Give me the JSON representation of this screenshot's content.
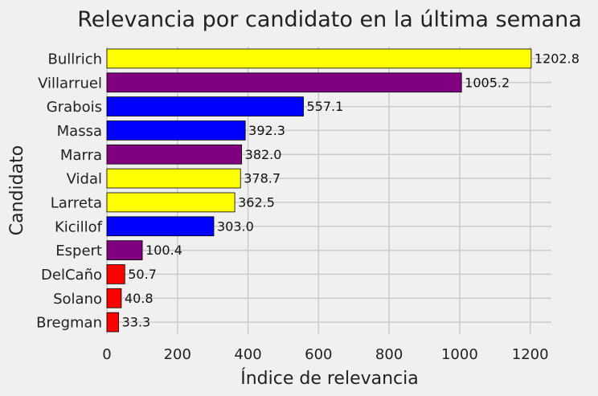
{
  "chart_data": {
    "type": "bar",
    "orientation": "horizontal",
    "title": "Relevancia por candidato en la última semana",
    "xlabel": "Índice de relevancia",
    "ylabel": "Candidato",
    "xlim": [
      0,
      1260
    ],
    "xticks": [
      0,
      200,
      400,
      600,
      800,
      1000,
      1200
    ],
    "grid": true,
    "categories": [
      "Bullrich",
      "Villarruel",
      "Grabois",
      "Massa",
      "Marra",
      "Vidal",
      "Larreta",
      "Kicillof",
      "Espert",
      "DelCaño",
      "Solano",
      "Bregman"
    ],
    "values": [
      1202.8,
      1005.2,
      557.1,
      392.3,
      382.0,
      378.7,
      362.5,
      303.0,
      100.4,
      50.7,
      40.8,
      33.3
    ],
    "value_labels": [
      "1202.8",
      "1005.2",
      "557.1",
      "392.3",
      "382.0",
      "378.7",
      "362.5",
      "303.0",
      "100.4",
      "50.7",
      "40.8",
      "33.3"
    ],
    "colors": [
      "#ffff00",
      "#800080",
      "#0000ff",
      "#0000ff",
      "#800080",
      "#ffff00",
      "#ffff00",
      "#0000ff",
      "#800080",
      "#ff0000",
      "#ff0000",
      "#ff0000"
    ]
  }
}
